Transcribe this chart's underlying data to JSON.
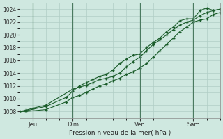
{
  "title": "Pression niveau de la mer( hPa )",
  "background_color": "#cfe8e0",
  "grid_color": "#b0cec5",
  "line_color": "#1a5c2a",
  "ylim": [
    1007.0,
    1025.0
  ],
  "yticks": [
    1008,
    1010,
    1012,
    1014,
    1016,
    1018,
    1020,
    1022,
    1024
  ],
  "xlim": [
    0,
    120
  ],
  "day_ticks": [
    8,
    32,
    72,
    104
  ],
  "day_labels": [
    "Jeu",
    "Dim",
    "Ven",
    "Sam"
  ],
  "vline_positions": [
    8,
    32,
    72,
    104
  ],
  "series1_x": [
    0,
    4,
    8,
    16,
    32,
    36,
    40,
    44,
    48,
    52,
    56,
    60,
    64,
    68,
    72,
    76,
    80,
    84,
    88,
    92,
    96,
    100,
    104,
    108,
    112,
    116,
    120
  ],
  "series1_y": [
    1008.0,
    1008.2,
    1008.5,
    1009.0,
    1011.5,
    1011.8,
    1012.1,
    1012.5,
    1013.0,
    1013.2,
    1013.5,
    1014.0,
    1015.0,
    1015.8,
    1016.5,
    1017.5,
    1018.5,
    1019.2,
    1020.0,
    1020.8,
    1021.5,
    1022.0,
    1022.3,
    1023.0,
    1023.5,
    1023.8,
    1024.0
  ],
  "series2_x": [
    0,
    4,
    16,
    28,
    32,
    36,
    40,
    44,
    48,
    52,
    56,
    60,
    64,
    68,
    72,
    76,
    80,
    84,
    88,
    92,
    96,
    100,
    104,
    108,
    112,
    116,
    120
  ],
  "series2_y": [
    1008.0,
    1008.1,
    1008.8,
    1010.2,
    1011.2,
    1012.0,
    1012.5,
    1013.0,
    1013.5,
    1013.8,
    1014.5,
    1015.5,
    1016.2,
    1016.8,
    1017.0,
    1018.0,
    1018.8,
    1019.5,
    1020.5,
    1021.2,
    1022.2,
    1022.5,
    1022.5,
    1023.8,
    1024.2,
    1023.8,
    1024.0
  ],
  "series3_x": [
    0,
    4,
    16,
    28,
    32,
    36,
    40,
    44,
    48,
    52,
    56,
    60,
    64,
    68,
    72,
    76,
    80,
    84,
    88,
    92,
    96,
    100,
    104,
    108,
    112,
    116,
    120
  ],
  "series3_y": [
    1008.0,
    1008.0,
    1008.3,
    1009.5,
    1010.2,
    1010.5,
    1011.0,
    1011.5,
    1012.0,
    1012.3,
    1012.8,
    1013.2,
    1013.8,
    1014.2,
    1014.8,
    1015.5,
    1016.5,
    1017.5,
    1018.5,
    1019.5,
    1020.5,
    1021.2,
    1022.0,
    1022.3,
    1022.5,
    1023.2,
    1023.5
  ]
}
